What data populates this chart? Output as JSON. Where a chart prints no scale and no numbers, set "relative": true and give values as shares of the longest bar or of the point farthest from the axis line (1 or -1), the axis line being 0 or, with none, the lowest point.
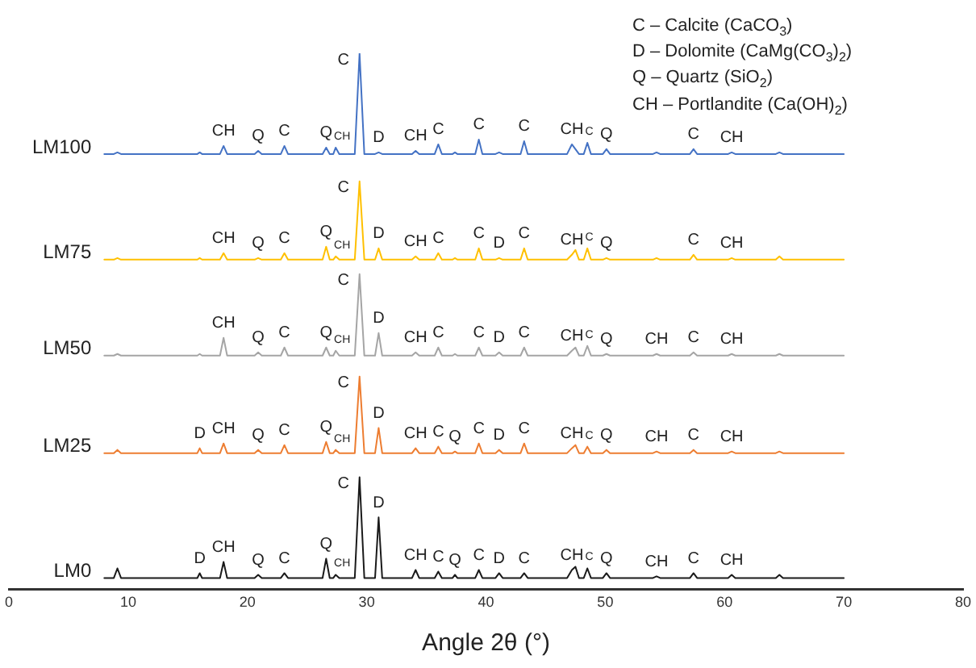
{
  "chart_data": {
    "type": "line",
    "relative": true,
    "xlabel": "Angle 2θ (°)",
    "xlim": [
      0,
      80
    ],
    "xticks": [
      0,
      10,
      20,
      30,
      40,
      50,
      60,
      70,
      80
    ],
    "grid": false,
    "legend": false,
    "marker": "none",
    "line_style": "solid",
    "x": [
      8,
      8.8,
      9.1,
      9.4,
      12,
      15.8,
      16,
      16.2,
      17.7,
      18.0,
      18.3,
      20.6,
      20.9,
      21.2,
      22.8,
      23.1,
      23.4,
      26.3,
      26.6,
      26.9,
      27.2,
      27.4,
      27.7,
      29.0,
      29.4,
      29.8,
      30.7,
      31.0,
      31.3,
      33.8,
      34.1,
      34.4,
      35.7,
      36.0,
      36.3,
      37.2,
      37.4,
      37.6,
      39.1,
      39.4,
      39.7,
      40.8,
      41.1,
      41.4,
      42.9,
      43.2,
      43.5,
      46.8,
      47.2,
      47.5,
      47.8,
      48.2,
      48.5,
      48.8,
      49.8,
      50.1,
      50.4,
      54.0,
      54.3,
      54.6,
      57.1,
      57.4,
      57.7,
      60.3,
      60.6,
      60.9,
      64.3,
      64.6,
      64.9,
      70
    ],
    "series": [
      {
        "name": "LM100",
        "color": "#4472c4",
        "values": [
          0.812,
          0.812,
          0.815,
          0.812,
          0.812,
          0.812,
          0.815,
          0.812,
          0.812,
          0.827,
          0.812,
          0.812,
          0.818,
          0.812,
          0.812,
          0.827,
          0.812,
          0.812,
          0.824,
          0.812,
          0.812,
          0.824,
          0.812,
          0.812,
          1,
          0.812,
          0.812,
          0.815,
          0.812,
          0.812,
          0.818,
          0.812,
          0.812,
          0.83,
          0.812,
          0.812,
          0.815,
          0.812,
          0.812,
          0.839,
          0.812,
          0.812,
          0.815,
          0.812,
          0.812,
          0.836,
          0.812,
          0.812,
          0.83,
          0.821,
          0.812,
          0.812,
          0.833,
          0.812,
          0.812,
          0.821,
          0.812,
          0.812,
          0.815,
          0.812,
          0.812,
          0.821,
          0.812,
          0.812,
          0.815,
          0.812,
          0.812,
          0.815,
          0.812,
          0.812
        ]
      },
      {
        "name": "LM75",
        "color": "#ffc000",
        "values": [
          0.615,
          0.615,
          0.618,
          0.615,
          0.615,
          0.615,
          0.618,
          0.615,
          0.615,
          0.627,
          0.615,
          0.615,
          0.618,
          0.615,
          0.615,
          0.627,
          0.615,
          0.615,
          0.639,
          0.615,
          0.615,
          0.621,
          0.615,
          0.615,
          0.761,
          0.615,
          0.615,
          0.636,
          0.615,
          0.615,
          0.621,
          0.615,
          0.615,
          0.627,
          0.615,
          0.615,
          0.618,
          0.615,
          0.615,
          0.636,
          0.615,
          0.615,
          0.618,
          0.615,
          0.615,
          0.636,
          0.615,
          0.615,
          0.624,
          0.633,
          0.615,
          0.615,
          0.636,
          0.615,
          0.615,
          0.618,
          0.615,
          0.615,
          0.618,
          0.615,
          0.615,
          0.624,
          0.615,
          0.615,
          0.618,
          0.615,
          0.615,
          0.621,
          0.615,
          0.615
        ]
      },
      {
        "name": "LM50",
        "color": "#a5a5a5",
        "values": [
          0.436,
          0.436,
          0.439,
          0.436,
          0.436,
          0.436,
          0.439,
          0.436,
          0.436,
          0.469,
          0.436,
          0.436,
          0.442,
          0.436,
          0.436,
          0.451,
          0.436,
          0.436,
          0.451,
          0.436,
          0.436,
          0.445,
          0.436,
          0.436,
          0.588,
          0.436,
          0.436,
          0.478,
          0.436,
          0.436,
          0.442,
          0.436,
          0.436,
          0.451,
          0.436,
          0.436,
          0.439,
          0.436,
          0.436,
          0.451,
          0.436,
          0.436,
          0.442,
          0.436,
          0.436,
          0.451,
          0.436,
          0.436,
          0.445,
          0.451,
          0.436,
          0.436,
          0.454,
          0.436,
          0.436,
          0.439,
          0.436,
          0.436,
          0.439,
          0.436,
          0.436,
          0.442,
          0.436,
          0.436,
          0.439,
          0.436,
          0.436,
          0.439,
          0.436,
          0.436
        ]
      },
      {
        "name": "LM25",
        "color": "#ed7d31",
        "values": [
          0.254,
          0.254,
          0.26,
          0.254,
          0.254,
          0.254,
          0.263,
          0.254,
          0.254,
          0.272,
          0.254,
          0.254,
          0.26,
          0.254,
          0.254,
          0.269,
          0.254,
          0.254,
          0.275,
          0.254,
          0.254,
          0.26,
          0.254,
          0.254,
          0.397,
          0.254,
          0.254,
          0.301,
          0.254,
          0.254,
          0.263,
          0.254,
          0.254,
          0.266,
          0.254,
          0.254,
          0.257,
          0.254,
          0.254,
          0.272,
          0.254,
          0.254,
          0.26,
          0.254,
          0.254,
          0.272,
          0.254,
          0.254,
          0.263,
          0.269,
          0.254,
          0.254,
          0.266,
          0.254,
          0.254,
          0.26,
          0.254,
          0.254,
          0.257,
          0.254,
          0.254,
          0.26,
          0.254,
          0.254,
          0.257,
          0.254,
          0.254,
          0.257,
          0.254,
          0.254
        ]
      },
      {
        "name": "LM0",
        "color": "#1a1a1a",
        "values": [
          0.021,
          0.021,
          0.039,
          0.021,
          0.021,
          0.021,
          0.03,
          0.021,
          0.021,
          0.051,
          0.021,
          0.021,
          0.027,
          0.021,
          0.021,
          0.03,
          0.021,
          0.021,
          0.057,
          0.021,
          0.021,
          0.027,
          0.021,
          0.021,
          0.209,
          0.021,
          0.021,
          0.134,
          0.021,
          0.021,
          0.036,
          0.021,
          0.021,
          0.033,
          0.021,
          0.021,
          0.027,
          0.021,
          0.021,
          0.036,
          0.021,
          0.021,
          0.03,
          0.021,
          0.021,
          0.03,
          0.021,
          0.021,
          0.036,
          0.042,
          0.021,
          0.021,
          0.039,
          0.021,
          0.021,
          0.03,
          0.021,
          0.021,
          0.024,
          0.021,
          0.021,
          0.03,
          0.021,
          0.021,
          0.027,
          0.021,
          0.021,
          0.027,
          0.021,
          0.021
        ]
      }
    ],
    "annotations": [
      "C – Calcite (CaCO$_{3}$)",
      "D – Dolomite (CaMg(CO$_{3}$)$_{2}$)",
      "Q – Quartz (SiO$_{2}$)",
      "CH – Portlandite (Ca(OH)$_{2}$)",
      {
        "text": "CH",
        "x": 18.0,
        "y": 0.827
      },
      {
        "text": "Q",
        "x": 20.9,
        "y": 0.818
      },
      {
        "text": "C",
        "x": 23.1,
        "y": 0.827
      },
      {
        "text": "Q",
        "x": 26.6,
        "y": 0.824
      },
      {
        "text": "CH",
        "x": 27.4,
        "y": 0.824
      },
      {
        "text": "C",
        "x": 29.4,
        "y": 1
      },
      {
        "text": "D",
        "x": 31.0,
        "y": 0.815
      },
      {
        "text": "CH",
        "x": 34.1,
        "y": 0.818
      },
      {
        "text": "C",
        "x": 36.0,
        "y": 0.83
      },
      {
        "text": "C",
        "x": 39.4,
        "y": 0.839
      },
      {
        "text": "C",
        "x": 43.2,
        "y": 0.836
      },
      {
        "text": "CH",
        "x": 47.2,
        "y": 0.83
      },
      {
        "text": "C",
        "x": 48.5,
        "y": 0.833
      },
      {
        "text": "Q",
        "x": 50.1,
        "y": 0.821
      },
      {
        "text": "C",
        "x": 57.4,
        "y": 0.821
      },
      {
        "text": "CH",
        "x": 60.6,
        "y": 0.815
      },
      {
        "text": "CH",
        "x": 18.0,
        "y": 0.627
      },
      {
        "text": "Q",
        "x": 20.9,
        "y": 0.618
      },
      {
        "text": "C",
        "x": 23.1,
        "y": 0.627
      },
      {
        "text": "Q",
        "x": 26.6,
        "y": 0.639
      },
      {
        "text": "CH",
        "x": 27.4,
        "y": 0.621
      },
      {
        "text": "C",
        "x": 29.4,
        "y": 0.761
      },
      {
        "text": "D",
        "x": 31.0,
        "y": 0.636
      },
      {
        "text": "CH",
        "x": 34.1,
        "y": 0.621
      },
      {
        "text": "C",
        "x": 36.0,
        "y": 0.627
      },
      {
        "text": "C",
        "x": 39.4,
        "y": 0.636
      },
      {
        "text": "D",
        "x": 41.1,
        "y": 0.618
      },
      {
        "text": "C",
        "x": 43.2,
        "y": 0.636
      },
      {
        "text": "CH",
        "x": 47.2,
        "y": 0.624
      },
      {
        "text": "C",
        "x": 48.5,
        "y": 0.636
      },
      {
        "text": "Q",
        "x": 50.1,
        "y": 0.618
      },
      {
        "text": "C",
        "x": 57.4,
        "y": 0.624
      },
      {
        "text": "CH",
        "x": 60.6,
        "y": 0.618
      },
      {
        "text": "CH",
        "x": 18.0,
        "y": 0.469
      },
      {
        "text": "Q",
        "x": 20.9,
        "y": 0.442
      },
      {
        "text": "C",
        "x": 23.1,
        "y": 0.451
      },
      {
        "text": "Q",
        "x": 26.6,
        "y": 0.451
      },
      {
        "text": "CH",
        "x": 27.4,
        "y": 0.445
      },
      {
        "text": "C",
        "x": 29.4,
        "y": 0.588
      },
      {
        "text": "D",
        "x": 31.0,
        "y": 0.478
      },
      {
        "text": "CH",
        "x": 34.1,
        "y": 0.442
      },
      {
        "text": "C",
        "x": 36.0,
        "y": 0.451
      },
      {
        "text": "C",
        "x": 39.4,
        "y": 0.451
      },
      {
        "text": "D",
        "x": 41.1,
        "y": 0.442
      },
      {
        "text": "C",
        "x": 43.2,
        "y": 0.451
      },
      {
        "text": "CH",
        "x": 47.2,
        "y": 0.445
      },
      {
        "text": "C",
        "x": 48.5,
        "y": 0.454
      },
      {
        "text": "Q",
        "x": 50.1,
        "y": 0.439
      },
      {
        "text": "CH",
        "x": 54.3,
        "y": 0.439
      },
      {
        "text": "C",
        "x": 57.4,
        "y": 0.442
      },
      {
        "text": "CH",
        "x": 60.6,
        "y": 0.439
      },
      {
        "text": "D",
        "x": 16.0,
        "y": 0.263
      },
      {
        "text": "CH",
        "x": 18.0,
        "y": 0.272
      },
      {
        "text": "Q",
        "x": 20.9,
        "y": 0.26
      },
      {
        "text": "C",
        "x": 23.1,
        "y": 0.269
      },
      {
        "text": "Q",
        "x": 26.6,
        "y": 0.275
      },
      {
        "text": "CH",
        "x": 27.4,
        "y": 0.26
      },
      {
        "text": "C",
        "x": 29.4,
        "y": 0.397
      },
      {
        "text": "D",
        "x": 31.0,
        "y": 0.301
      },
      {
        "text": "CH",
        "x": 34.1,
        "y": 0.263
      },
      {
        "text": "C",
        "x": 36.0,
        "y": 0.266
      },
      {
        "text": "Q",
        "x": 37.4,
        "y": 0.257
      },
      {
        "text": "C",
        "x": 39.4,
        "y": 0.272
      },
      {
        "text": "D",
        "x": 41.1,
        "y": 0.26
      },
      {
        "text": "C",
        "x": 43.2,
        "y": 0.272
      },
      {
        "text": "CH",
        "x": 47.2,
        "y": 0.263
      },
      {
        "text": "C",
        "x": 48.5,
        "y": 0.266
      },
      {
        "text": "Q",
        "x": 50.1,
        "y": 0.26
      },
      {
        "text": "CH",
        "x": 54.3,
        "y": 0.257
      },
      {
        "text": "C",
        "x": 57.4,
        "y": 0.26
      },
      {
        "text": "CH",
        "x": 60.6,
        "y": 0.257
      },
      {
        "text": "D",
        "x": 16.0,
        "y": 0.03
      },
      {
        "text": "CH",
        "x": 18.0,
        "y": 0.051
      },
      {
        "text": "Q",
        "x": 20.9,
        "y": 0.027
      },
      {
        "text": "C",
        "x": 23.1,
        "y": 0.03
      },
      {
        "text": "Q",
        "x": 26.6,
        "y": 0.057
      },
      {
        "text": "CH",
        "x": 27.4,
        "y": 0.027
      },
      {
        "text": "C",
        "x": 29.4,
        "y": 0.209
      },
      {
        "text": "D",
        "x": 31.0,
        "y": 0.134
      },
      {
        "text": "CH",
        "x": 34.1,
        "y": 0.036
      },
      {
        "text": "C",
        "x": 36.0,
        "y": 0.033
      },
      {
        "text": "Q",
        "x": 37.4,
        "y": 0.027
      },
      {
        "text": "C",
        "x": 39.4,
        "y": 0.036
      },
      {
        "text": "D",
        "x": 41.1,
        "y": 0.03
      },
      {
        "text": "C",
        "x": 43.2,
        "y": 0.03
      },
      {
        "text": "CH",
        "x": 47.2,
        "y": 0.036
      },
      {
        "text": "C",
        "x": 48.5,
        "y": 0.039
      },
      {
        "text": "Q",
        "x": 50.1,
        "y": 0.03
      },
      {
        "text": "CH",
        "x": 54.3,
        "y": 0.024
      },
      {
        "text": "C",
        "x": 57.4,
        "y": 0.03
      },
      {
        "text": "CH",
        "x": 60.6,
        "y": 0.027
      }
    ]
  }
}
